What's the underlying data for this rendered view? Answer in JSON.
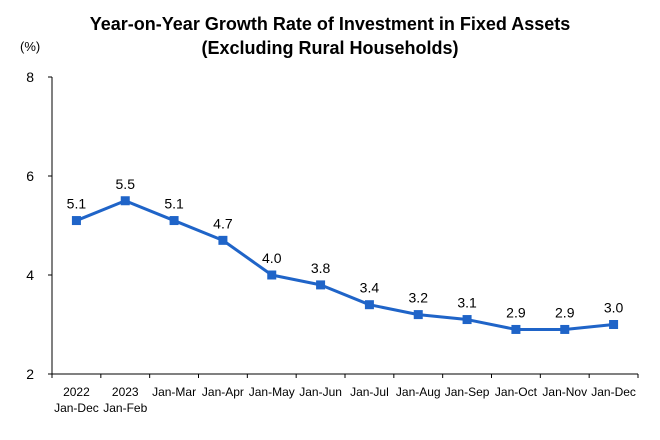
{
  "chart_data": {
    "type": "line",
    "title": "Year-on-Year Growth Rate of Investment in Fixed Assets",
    "subtitle": "(Excluding Rural Households)",
    "ylabel": "(%)",
    "xlabel": "",
    "ylim": [
      2,
      8
    ],
    "yticks": [
      2,
      4,
      6,
      8
    ],
    "grid": false,
    "legend": "none",
    "categories": [
      [
        "2022",
        "Jan-Dec"
      ],
      [
        "2023",
        "Jan-Feb"
      ],
      [
        "Jan-Mar"
      ],
      [
        "Jan-Apr"
      ],
      [
        "Jan-May"
      ],
      [
        "Jan-Jun"
      ],
      [
        "Jan-Jul"
      ],
      [
        "Jan-Aug"
      ],
      [
        "Jan-Sep"
      ],
      [
        "Jan-Oct"
      ],
      [
        "Jan-Nov"
      ],
      [
        "Jan-Dec"
      ]
    ],
    "series": [
      {
        "values": [
          5.1,
          5.5,
          5.1,
          4.7,
          4.0,
          3.8,
          3.4,
          3.2,
          3.1,
          2.9,
          2.9,
          3.0
        ],
        "labels": [
          "5.1",
          "5.5",
          "5.1",
          "4.7",
          "4.0",
          "3.8",
          "3.4",
          "3.2",
          "3.1",
          "2.9",
          "2.9",
          "3.0"
        ],
        "color": "#1f64c8"
      }
    ]
  }
}
